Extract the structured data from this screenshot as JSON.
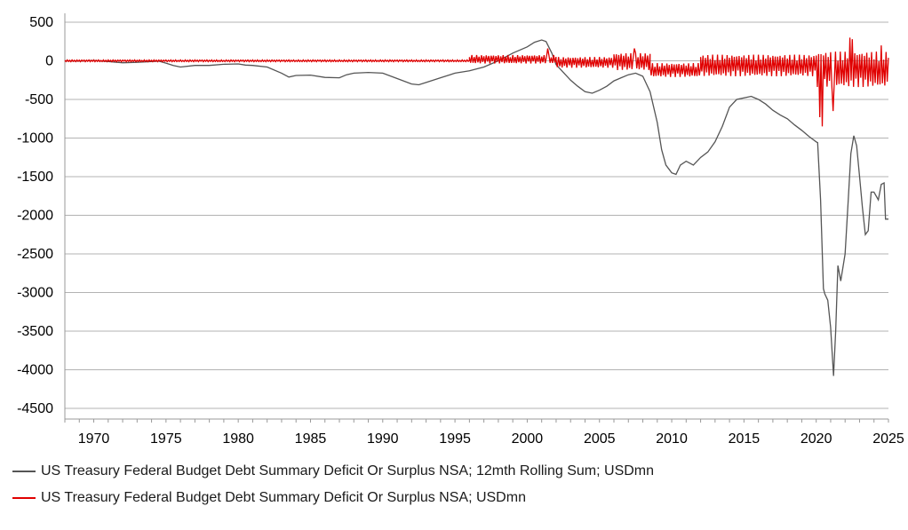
{
  "chart_data": {
    "type": "line",
    "title": "",
    "xlabel": "",
    "ylabel": "",
    "xlim": [
      1968,
      2025
    ],
    "ylim": [
      -4500,
      500
    ],
    "x_ticks": [
      1970,
      1975,
      1980,
      1985,
      1990,
      1995,
      2000,
      2005,
      2010,
      2015,
      2020,
      2025
    ],
    "y_ticks": [
      500,
      0,
      -500,
      -1000,
      -1500,
      -2000,
      -2500,
      -3000,
      -3500,
      -4000,
      -4500
    ],
    "grid": "horizontal",
    "legend_position": "bottom-left",
    "series": [
      {
        "name": "US Treasury Federal Budget Debt Summary Deficit Or Surplus NSA; 12mth Rolling Sum; USDmn",
        "color": "#555555",
        "points": [
          [
            1968.0,
            0
          ],
          [
            1969.0,
            -5
          ],
          [
            1970.0,
            5
          ],
          [
            1971.0,
            -10
          ],
          [
            1972.0,
            -25
          ],
          [
            1973.0,
            -20
          ],
          [
            1974.0,
            -10
          ],
          [
            1974.5,
            -5
          ],
          [
            1975.0,
            -30
          ],
          [
            1975.5,
            -60
          ],
          [
            1976.0,
            -80
          ],
          [
            1977.0,
            -60
          ],
          [
            1978.0,
            -60
          ],
          [
            1979.0,
            -45
          ],
          [
            1980.0,
            -40
          ],
          [
            1980.5,
            -55
          ],
          [
            1981.0,
            -60
          ],
          [
            1982.0,
            -80
          ],
          [
            1983.0,
            -160
          ],
          [
            1983.5,
            -210
          ],
          [
            1984.0,
            -190
          ],
          [
            1985.0,
            -185
          ],
          [
            1986.0,
            -215
          ],
          [
            1987.0,
            -220
          ],
          [
            1987.5,
            -180
          ],
          [
            1988.0,
            -160
          ],
          [
            1989.0,
            -150
          ],
          [
            1990.0,
            -160
          ],
          [
            1991.0,
            -230
          ],
          [
            1992.0,
            -300
          ],
          [
            1992.5,
            -310
          ],
          [
            1993.0,
            -280
          ],
          [
            1994.0,
            -220
          ],
          [
            1995.0,
            -160
          ],
          [
            1996.0,
            -130
          ],
          [
            1997.0,
            -80
          ],
          [
            1998.0,
            0
          ],
          [
            1999.0,
            100
          ],
          [
            2000.0,
            180
          ],
          [
            2000.5,
            240
          ],
          [
            2001.0,
            270
          ],
          [
            2001.3,
            250
          ],
          [
            2001.7,
            100
          ],
          [
            2002.0,
            -50
          ],
          [
            2002.5,
            -150
          ],
          [
            2003.0,
            -250
          ],
          [
            2003.5,
            -330
          ],
          [
            2004.0,
            -400
          ],
          [
            2004.5,
            -420
          ],
          [
            2005.0,
            -380
          ],
          [
            2005.5,
            -330
          ],
          [
            2006.0,
            -260
          ],
          [
            2006.5,
            -220
          ],
          [
            2007.0,
            -180
          ],
          [
            2007.5,
            -160
          ],
          [
            2008.0,
            -200
          ],
          [
            2008.5,
            -400
          ],
          [
            2009.0,
            -800
          ],
          [
            2009.3,
            -1150
          ],
          [
            2009.6,
            -1350
          ],
          [
            2010.0,
            -1450
          ],
          [
            2010.3,
            -1470
          ],
          [
            2010.6,
            -1350
          ],
          [
            2011.0,
            -1300
          ],
          [
            2011.5,
            -1350
          ],
          [
            2012.0,
            -1250
          ],
          [
            2012.5,
            -1180
          ],
          [
            2013.0,
            -1050
          ],
          [
            2013.5,
            -850
          ],
          [
            2014.0,
            -600
          ],
          [
            2014.5,
            -500
          ],
          [
            2015.0,
            -480
          ],
          [
            2015.5,
            -460
          ],
          [
            2016.0,
            -500
          ],
          [
            2016.5,
            -560
          ],
          [
            2017.0,
            -640
          ],
          [
            2017.5,
            -700
          ],
          [
            2018.0,
            -750
          ],
          [
            2018.5,
            -830
          ],
          [
            2019.0,
            -900
          ],
          [
            2019.5,
            -980
          ],
          [
            2020.0,
            -1050
          ],
          [
            2020.1,
            -1060
          ],
          [
            2020.3,
            -1800
          ],
          [
            2020.5,
            -2950
          ],
          [
            2020.6,
            -3020
          ],
          [
            2020.8,
            -3100
          ],
          [
            2021.0,
            -3450
          ],
          [
            2021.2,
            -4080
          ],
          [
            2021.35,
            -3500
          ],
          [
            2021.5,
            -2650
          ],
          [
            2021.7,
            -2850
          ],
          [
            2022.0,
            -2500
          ],
          [
            2022.2,
            -1850
          ],
          [
            2022.4,
            -1200
          ],
          [
            2022.6,
            -970
          ],
          [
            2022.8,
            -1100
          ],
          [
            2023.0,
            -1500
          ],
          [
            2023.2,
            -1900
          ],
          [
            2023.4,
            -2250
          ],
          [
            2023.6,
            -2200
          ],
          [
            2023.8,
            -1700
          ],
          [
            2024.0,
            -1700
          ],
          [
            2024.3,
            -1800
          ],
          [
            2024.5,
            -1600
          ],
          [
            2024.7,
            -1580
          ],
          [
            2024.8,
            -2050
          ],
          [
            2025.0,
            -2050
          ]
        ]
      },
      {
        "name": "US Treasury Federal Budget Debt Summary Deficit Or Surplus NSA; USDmn",
        "color": "#e00000",
        "segments": [
          {
            "from": 1968.0,
            "to": 1996.0,
            "base": 0,
            "amp": 12
          },
          {
            "from": 1996.0,
            "to": 2002.0,
            "base": 20,
            "amp": 55
          },
          {
            "from": 2002.0,
            "to": 2006.0,
            "base": -20,
            "amp": 70
          },
          {
            "from": 2006.0,
            "to": 2008.5,
            "base": -10,
            "amp": 110
          },
          {
            "from": 2008.5,
            "to": 2012.0,
            "base": -120,
            "amp": 90
          },
          {
            "from": 2012.0,
            "to": 2020.0,
            "base": -60,
            "amp": 140
          },
          {
            "from": 2020.0,
            "to": 2025.0,
            "base": -110,
            "amp": 230
          }
        ],
        "spikes": [
          [
            2001.4,
            160
          ],
          [
            2007.4,
            160
          ],
          [
            2020.25,
            -730
          ],
          [
            2020.45,
            -850
          ],
          [
            2021.2,
            -650
          ],
          [
            2022.3,
            300
          ],
          [
            2022.5,
            280
          ],
          [
            2024.5,
            200
          ]
        ]
      }
    ]
  }
}
